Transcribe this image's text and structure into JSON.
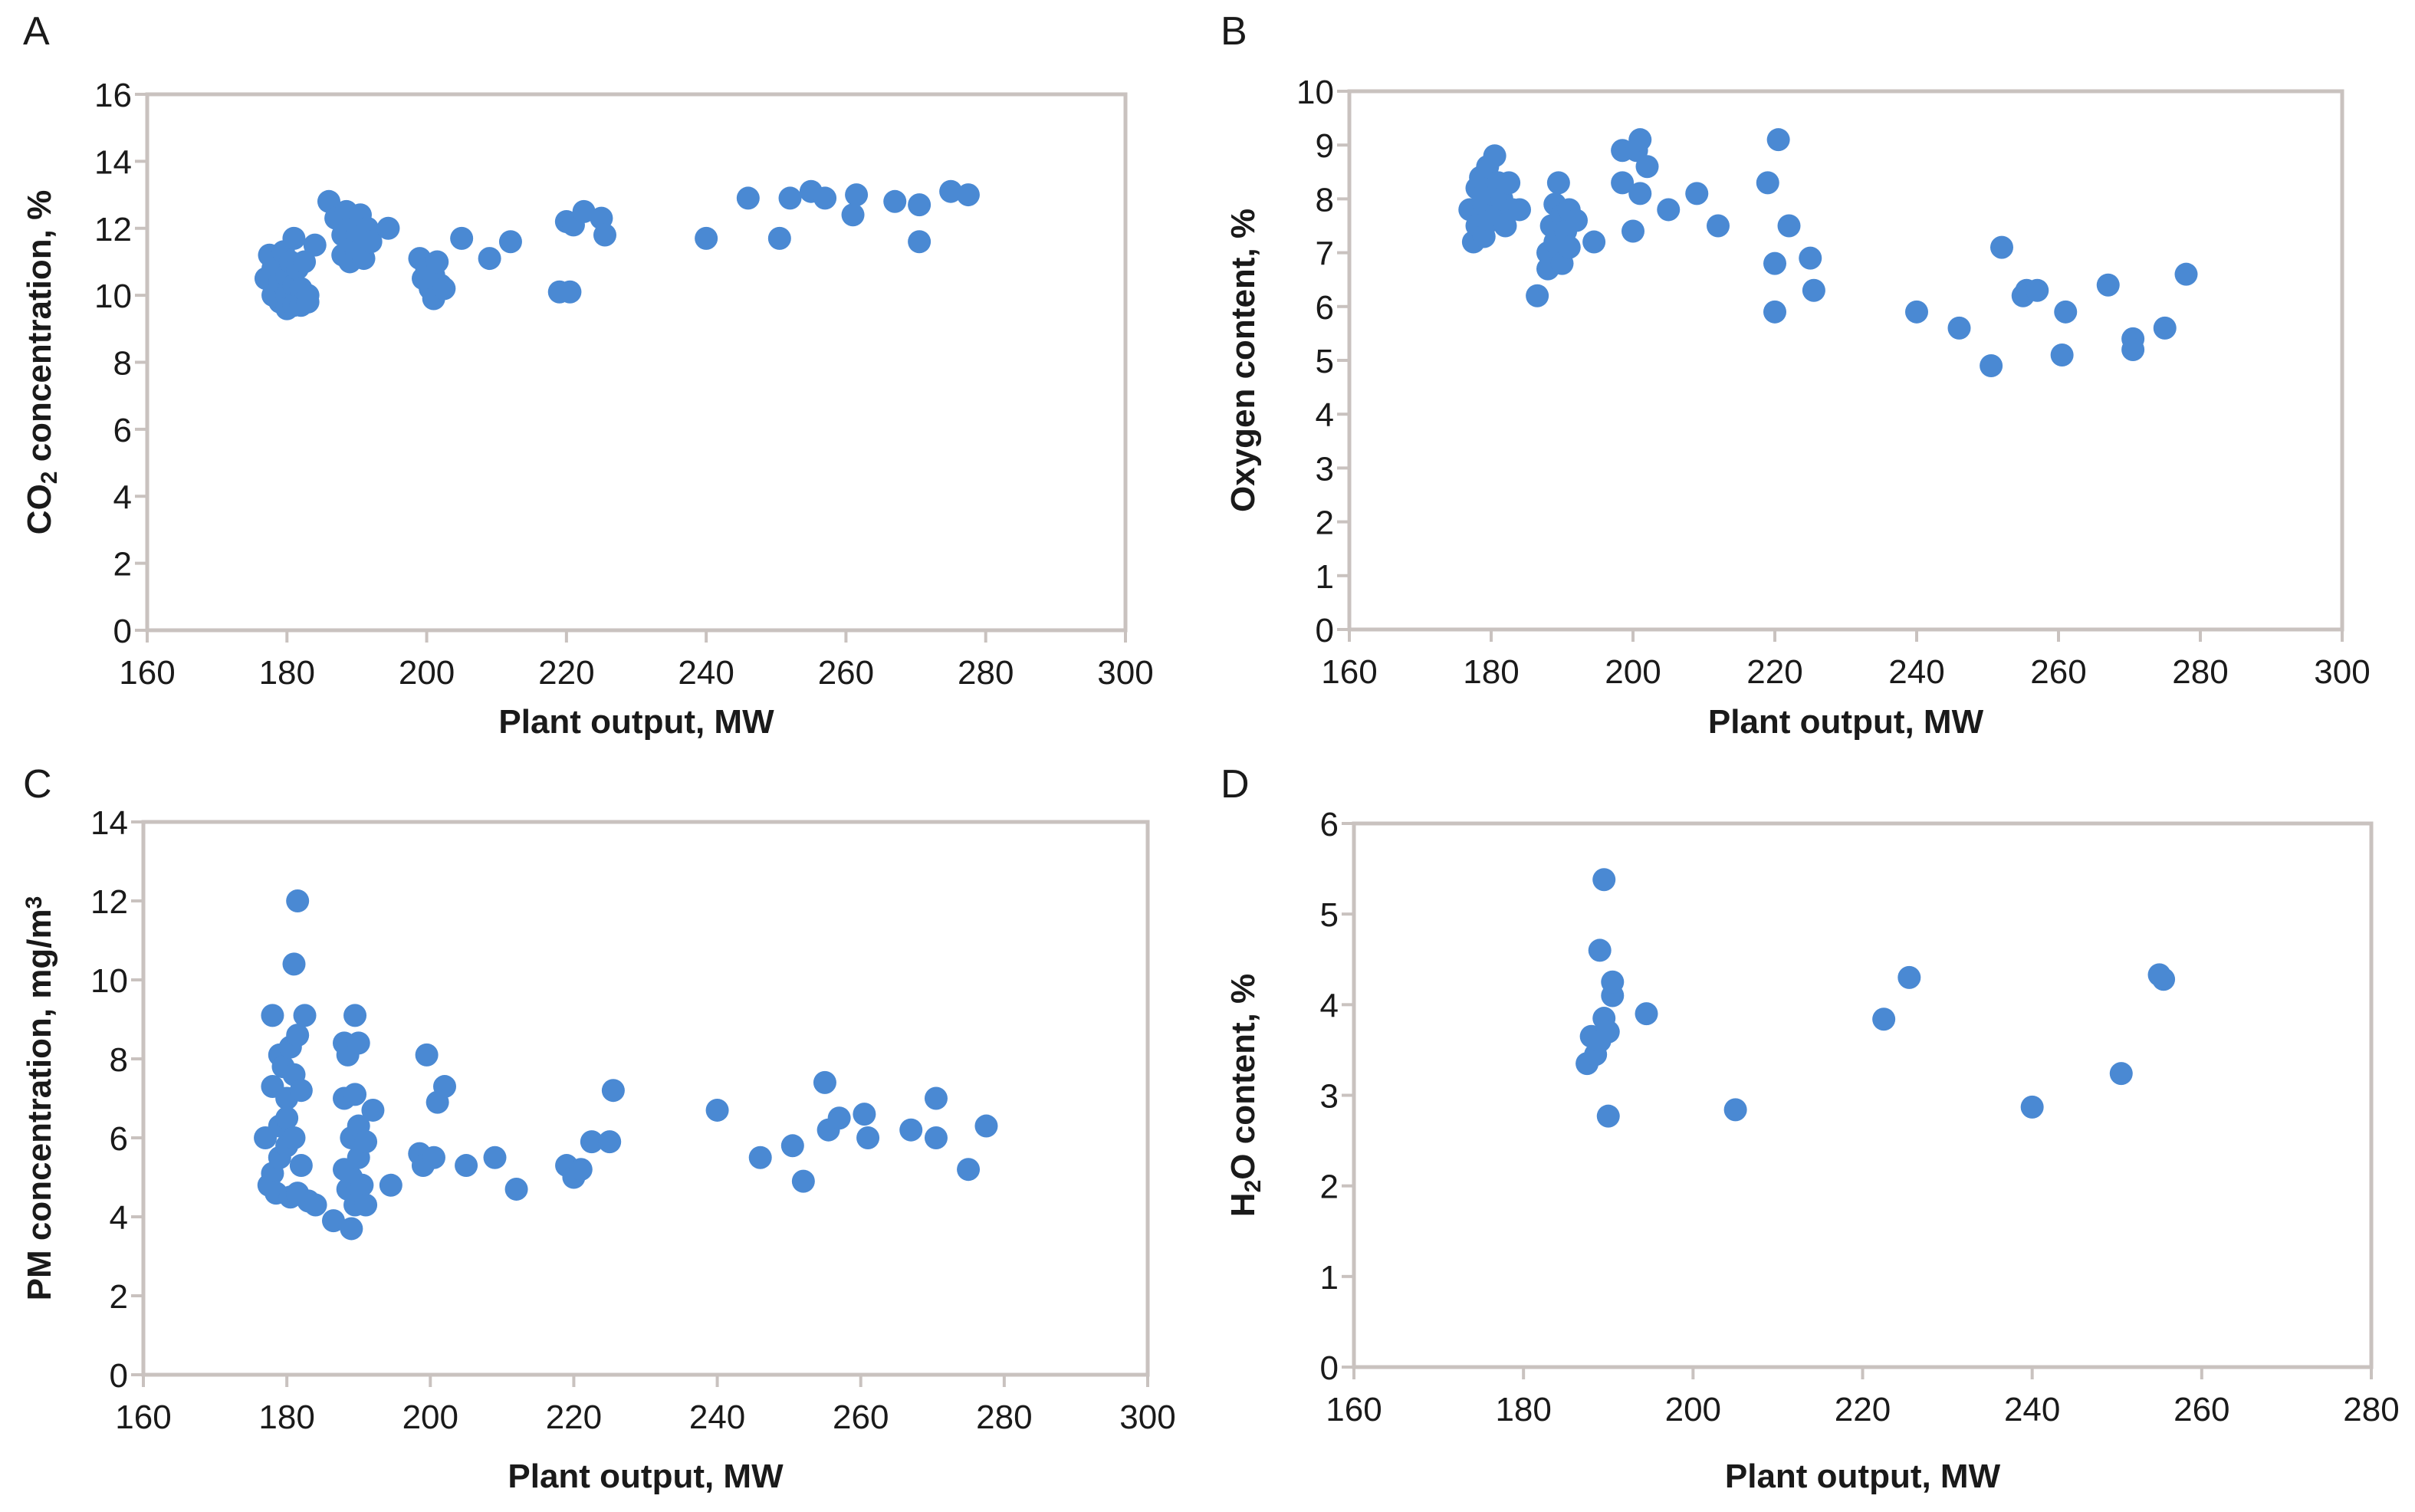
{
  "chart_data": [
    {
      "id": "A",
      "type": "scatter",
      "panel_label": "A",
      "title": "",
      "xlabel": "Plant output, MW",
      "ylabel_parts": [
        {
          "t": "CO"
        },
        {
          "t": "2",
          "sub": true
        },
        {
          "t": " concentration, %"
        }
      ],
      "ylabel": "CO2 concentration, %",
      "xlim": [
        160,
        300
      ],
      "ylim": [
        0,
        16
      ],
      "xticks": [
        160,
        180,
        200,
        220,
        240,
        260,
        280,
        300
      ],
      "yticks": [
        0,
        2,
        4,
        6,
        8,
        10,
        12,
        14,
        16
      ],
      "grid": false,
      "marker_color": "#4a89d3",
      "points": [
        [
          177,
          10.5
        ],
        [
          177.5,
          11.2
        ],
        [
          178,
          10.8
        ],
        [
          178,
          10.0
        ],
        [
          178.5,
          11.0
        ],
        [
          179,
          10.4
        ],
        [
          179,
          9.8
        ],
        [
          179.5,
          11.3
        ],
        [
          180,
          10.6
        ],
        [
          180,
          10.0
        ],
        [
          180,
          9.6
        ],
        [
          180.5,
          11.0
        ],
        [
          181,
          10.3
        ],
        [
          181,
          11.7
        ],
        [
          181,
          9.7
        ],
        [
          181.5,
          10.8
        ],
        [
          182,
          10.2
        ],
        [
          182,
          9.7
        ],
        [
          182.5,
          11.0
        ],
        [
          183,
          10.0
        ],
        [
          183,
          9.8
        ],
        [
          184,
          11.5
        ],
        [
          186,
          12.8
        ],
        [
          187,
          12.3
        ],
        [
          188,
          11.8
        ],
        [
          188,
          11.2
        ],
        [
          188.5,
          12.5
        ],
        [
          189,
          11.6
        ],
        [
          189,
          11.0
        ],
        [
          189.5,
          12.2
        ],
        [
          190,
          11.8
        ],
        [
          190,
          11.3
        ],
        [
          190.5,
          12.4
        ],
        [
          191,
          11.6
        ],
        [
          191,
          11.1
        ],
        [
          191.5,
          12.0
        ],
        [
          192,
          11.6
        ],
        [
          194.5,
          12.0
        ],
        [
          199,
          11.1
        ],
        [
          199.5,
          10.5
        ],
        [
          200,
          10.8
        ],
        [
          200.5,
          10.2
        ],
        [
          201,
          10.6
        ],
        [
          201,
          9.9
        ],
        [
          201.5,
          11.0
        ],
        [
          202,
          10.3
        ],
        [
          202.5,
          10.2
        ],
        [
          205,
          11.7
        ],
        [
          209,
          11.1
        ],
        [
          212,
          11.6
        ],
        [
          219,
          10.1
        ],
        [
          220,
          12.2
        ],
        [
          220.5,
          10.1
        ],
        [
          221,
          12.1
        ],
        [
          222.5,
          12.5
        ],
        [
          225,
          12.3
        ],
        [
          225.5,
          11.8
        ],
        [
          240,
          11.7
        ],
        [
          246,
          12.9
        ],
        [
          250.5,
          11.7
        ],
        [
          252,
          12.9
        ],
        [
          255,
          13.1
        ],
        [
          257,
          12.9
        ],
        [
          261,
          12.4
        ],
        [
          261.5,
          13.0
        ],
        [
          267,
          12.8
        ],
        [
          270.5,
          11.6
        ],
        [
          270.5,
          12.7
        ],
        [
          275,
          13.1
        ],
        [
          277.5,
          13.0
        ]
      ]
    },
    {
      "id": "B",
      "type": "scatter",
      "panel_label": "B",
      "title": "",
      "xlabel": "Plant output, MW",
      "ylabel_parts": [
        {
          "t": "Oxygen content, %"
        }
      ],
      "ylabel": "Oxygen content, %",
      "xlim": [
        160,
        300
      ],
      "ylim": [
        0,
        10
      ],
      "xticks": [
        160,
        180,
        200,
        220,
        240,
        260,
        280,
        300
      ],
      "yticks": [
        0,
        1,
        2,
        3,
        4,
        5,
        6,
        7,
        8,
        9,
        10
      ],
      "grid": false,
      "marker_color": "#4a89d3",
      "points": [
        [
          177,
          7.8
        ],
        [
          177.5,
          7.2
        ],
        [
          178,
          8.2
        ],
        [
          178,
          7.5
        ],
        [
          178.5,
          8.4
        ],
        [
          179,
          7.9
        ],
        [
          179,
          7.3
        ],
        [
          179.5,
          8.6
        ],
        [
          180,
          8.1
        ],
        [
          180,
          7.6
        ],
        [
          180.5,
          8.8
        ],
        [
          181,
          8.3
        ],
        [
          181,
          7.7
        ],
        [
          181.5,
          8.0
        ],
        [
          182,
          7.5
        ],
        [
          182.5,
          8.3
        ],
        [
          183,
          7.8
        ],
        [
          184,
          7.8
        ],
        [
          186.5,
          6.2
        ],
        [
          188,
          7.0
        ],
        [
          188,
          6.7
        ],
        [
          188.5,
          7.5
        ],
        [
          189,
          7.9
        ],
        [
          189,
          7.2
        ],
        [
          189.5,
          8.3
        ],
        [
          190,
          7.7
        ],
        [
          190,
          6.8
        ],
        [
          190.5,
          7.4
        ],
        [
          191,
          7.8
        ],
        [
          191,
          7.1
        ],
        [
          192,
          7.6
        ],
        [
          194.5,
          7.2
        ],
        [
          198.5,
          8.9
        ],
        [
          198.5,
          8.3
        ],
        [
          200,
          7.4
        ],
        [
          200.5,
          8.9
        ],
        [
          201,
          9.1
        ],
        [
          201,
          8.1
        ],
        [
          202,
          8.6
        ],
        [
          205,
          7.8
        ],
        [
          209,
          8.1
        ],
        [
          212,
          7.5
        ],
        [
          219,
          8.3
        ],
        [
          220,
          6.8
        ],
        [
          220,
          5.9
        ],
        [
          220.5,
          9.1
        ],
        [
          222,
          7.5
        ],
        [
          225,
          6.9
        ],
        [
          225.5,
          6.3
        ],
        [
          240,
          5.9
        ],
        [
          246,
          5.6
        ],
        [
          250.5,
          4.9
        ],
        [
          252,
          7.1
        ],
        [
          255,
          6.2
        ],
        [
          255.5,
          6.3
        ],
        [
          257,
          6.3
        ],
        [
          260.5,
          5.1
        ],
        [
          261,
          5.9
        ],
        [
          267,
          6.4
        ],
        [
          270.5,
          5.4
        ],
        [
          270.5,
          5.2
        ],
        [
          275,
          5.6
        ],
        [
          278,
          6.6
        ]
      ]
    },
    {
      "id": "C",
      "type": "scatter",
      "panel_label": "C",
      "title": "",
      "xlabel": "Plant output, MW",
      "ylabel_parts": [
        {
          "t": "PM concentration, mg/m"
        },
        {
          "t": "3",
          "sup": true
        }
      ],
      "ylabel": "PM concentration, mg/m3",
      "xlim": [
        160,
        300
      ],
      "ylim": [
        0,
        14
      ],
      "xticks": [
        160,
        180,
        200,
        220,
        240,
        260,
        280,
        300
      ],
      "yticks": [
        0,
        2,
        4,
        6,
        8,
        10,
        12,
        14
      ],
      "grid": false,
      "marker_color": "#4a89d3",
      "points": [
        [
          177,
          6.0
        ],
        [
          177.5,
          4.8
        ],
        [
          178,
          5.1
        ],
        [
          178,
          9.1
        ],
        [
          178,
          7.3
        ],
        [
          178.5,
          4.6
        ],
        [
          179,
          8.1
        ],
        [
          179,
          6.3
        ],
        [
          179,
          5.5
        ],
        [
          179.5,
          7.8
        ],
        [
          180,
          7.0
        ],
        [
          180,
          6.5
        ],
        [
          180,
          5.8
        ],
        [
          180.5,
          8.3
        ],
        [
          180.5,
          4.5
        ],
        [
          181,
          10.4
        ],
        [
          181,
          7.6
        ],
        [
          181,
          6.0
        ],
        [
          181.5,
          12.0
        ],
        [
          181.5,
          8.6
        ],
        [
          181.5,
          4.6
        ],
        [
          182,
          7.2
        ],
        [
          182,
          5.3
        ],
        [
          182.5,
          9.1
        ],
        [
          183,
          4.4
        ],
        [
          184,
          4.3
        ],
        [
          186.5,
          3.9
        ],
        [
          188,
          8.4
        ],
        [
          188,
          7.0
        ],
        [
          188,
          5.2
        ],
        [
          188.5,
          8.1
        ],
        [
          188.5,
          4.7
        ],
        [
          189,
          3.7
        ],
        [
          189,
          6.0
        ],
        [
          189,
          5.0
        ],
        [
          189.5,
          9.1
        ],
        [
          189.5,
          7.1
        ],
        [
          189.5,
          4.3
        ],
        [
          190,
          8.4
        ],
        [
          190,
          6.3
        ],
        [
          190,
          5.5
        ],
        [
          190.5,
          4.8
        ],
        [
          191,
          5.9
        ],
        [
          191,
          4.3
        ],
        [
          192,
          6.7
        ],
        [
          194.5,
          4.8
        ],
        [
          198.5,
          5.6
        ],
        [
          199,
          5.3
        ],
        [
          199.5,
          8.1
        ],
        [
          200.5,
          5.5
        ],
        [
          201,
          6.9
        ],
        [
          202,
          7.3
        ],
        [
          205,
          5.3
        ],
        [
          209,
          5.5
        ],
        [
          212,
          4.7
        ],
        [
          219,
          5.3
        ],
        [
          220,
          5.0
        ],
        [
          221,
          5.2
        ],
        [
          222.5,
          5.9
        ],
        [
          225,
          5.9
        ],
        [
          225.5,
          7.2
        ],
        [
          240,
          6.7
        ],
        [
          246,
          5.5
        ],
        [
          250.5,
          5.8
        ],
        [
          252,
          4.9
        ],
        [
          255,
          7.4
        ],
        [
          255.5,
          6.2
        ],
        [
          257,
          6.5
        ],
        [
          260.5,
          6.6
        ],
        [
          261,
          6.0
        ],
        [
          267,
          6.2
        ],
        [
          270.5,
          7.0
        ],
        [
          270.5,
          6.0
        ],
        [
          275,
          5.2
        ],
        [
          277.5,
          6.3
        ]
      ]
    },
    {
      "id": "D",
      "type": "scatter",
      "panel_label": "D",
      "title": "",
      "xlabel": "Plant output, MW",
      "ylabel_parts": [
        {
          "t": "H"
        },
        {
          "t": "2",
          "sub": true
        },
        {
          "t": "O content, %"
        }
      ],
      "ylabel": "H2O content, %",
      "xlim": [
        160,
        280
      ],
      "ylim": [
        0,
        6
      ],
      "xticks": [
        160,
        180,
        200,
        220,
        240,
        260,
        280
      ],
      "yticks": [
        0,
        1,
        2,
        3,
        4,
        5,
        6
      ],
      "grid": false,
      "marker_color": "#4a89d3",
      "points": [
        [
          187.5,
          3.35
        ],
        [
          188,
          3.65
        ],
        [
          188.5,
          3.45
        ],
        [
          189,
          3.6
        ],
        [
          189,
          4.6
        ],
        [
          189.5,
          3.85
        ],
        [
          189.5,
          5.38
        ],
        [
          190,
          2.77
        ],
        [
          190,
          3.7
        ],
        [
          190.5,
          4.1
        ],
        [
          190.5,
          4.25
        ],
        [
          194.5,
          3.9
        ],
        [
          205,
          2.84
        ],
        [
          222.5,
          3.84
        ],
        [
          225.5,
          4.3
        ],
        [
          240,
          2.87
        ],
        [
          250.5,
          3.24
        ],
        [
          255,
          4.33
        ],
        [
          255.5,
          4.28
        ]
      ]
    }
  ]
}
